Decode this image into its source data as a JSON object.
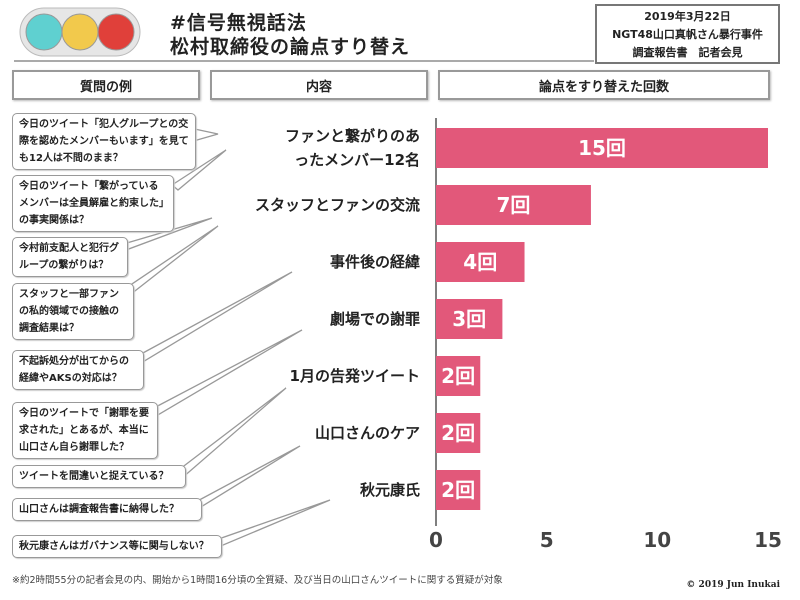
{
  "header": {
    "title_line1": "#信号無視話法",
    "title_line2": "松村取締役の論点すり替え",
    "info": [
      "2019年3月22日",
      "NGT48山口真帆さん暴行事件",
      "調査報告書　記者会見"
    ],
    "traffic_light_colors": [
      "#5fd0d0",
      "#f2c94c",
      "#e0403a"
    ]
  },
  "columns": [
    "質問の例",
    "内容",
    "論点をすり替えた回数"
  ],
  "questions": [
    "今日のツイート「犯人グループとの交際を認めたメンバーもいます」を見ても12人は不問のまま？",
    "今日のツイート「繋がっているメンバーは全員解雇と約束した」の事実関係は？",
    "今村前支配人と犯行グループの繋がりは？",
    "スタッフと一部ファンの私的領域での接触の調査結果は？",
    "不起訴処分が出てからの経緯やAKSの対応は？",
    "今日のツイートで「謝罪を要求された」とあるが、本当に山口さん自ら謝罪した？",
    "ツイートを間違いと捉えている？",
    "山口さんは調査報告書に納得した？",
    "秋元康さんはガバナンス等に関与しない？"
  ],
  "chart_data": {
    "type": "bar",
    "orientation": "horizontal",
    "categories": [
      "ファンと繋がりのあったメンバー12名",
      "スタッフとファンの交流",
      "事件後の経緯",
      "劇場での謝罪",
      "1月の告発ツイート",
      "山口さんのケア",
      "秋元康氏"
    ],
    "values": [
      15,
      7,
      4,
      3,
      2,
      2,
      2
    ],
    "data_labels": [
      "15回",
      "7回",
      "4回",
      "3回",
      "2回",
      "2回",
      "2回"
    ],
    "xlim": [
      0,
      15
    ],
    "xticks": [
      "0",
      "5",
      "10",
      "15"
    ],
    "bar_color": "#e2587a",
    "grid": false
  },
  "footer": {
    "note": "※約2時間55分の記者会見の内、開始から1時間16分頃の全質疑、及び当日の山口さんツイートに関する質疑が対象",
    "copyright": "© 2019 Jun Inukai"
  }
}
